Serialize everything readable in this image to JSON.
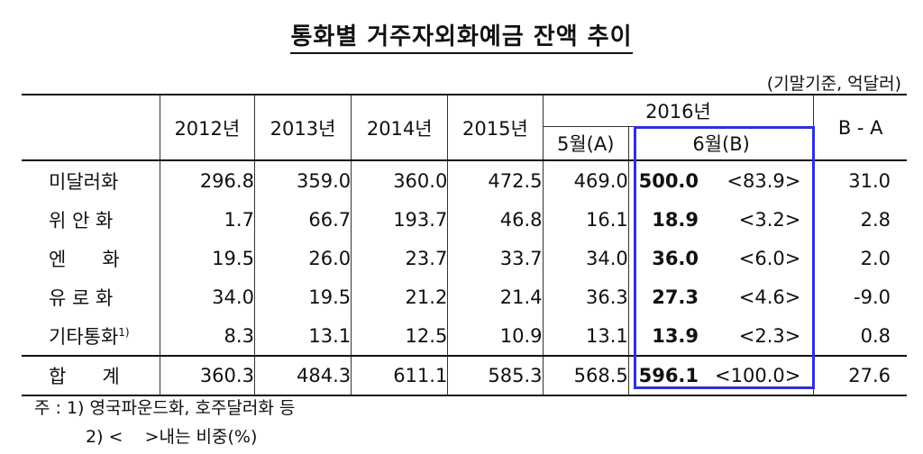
{
  "title": "통화별 거주자외화예금 잔액 추이",
  "unit": "(기말기준, 억달러)",
  "header": {
    "years": [
      "2012년",
      "2013년",
      "2014년",
      "2015년"
    ],
    "group": "2016년",
    "may": "5월(A)",
    "june": "6월(B)",
    "diff": "B - A"
  },
  "rows": [
    {
      "label": "미달러화",
      "sup": "",
      "y2012": "296.8",
      "y2013": "359.0",
      "y2014": "360.0",
      "y2015": "472.5",
      "may": "469.0",
      "june": "500.0",
      "ratio": "<83.9>",
      "diff": "31.0"
    },
    {
      "label": "위 안 화",
      "sup": "",
      "y2012": "1.7",
      "y2013": "66.7",
      "y2014": "193.7",
      "y2015": "46.8",
      "may": "16.1",
      "june": "18.9",
      "ratio": "<3.2>",
      "diff": "2.8"
    },
    {
      "label": "엔      화",
      "sup": "",
      "y2012": "19.5",
      "y2013": "26.0",
      "y2014": "23.7",
      "y2015": "33.7",
      "may": "34.0",
      "june": "36.0",
      "ratio": "<6.0>",
      "diff": "2.0"
    },
    {
      "label": "유 로 화",
      "sup": "",
      "y2012": "34.0",
      "y2013": "19.5",
      "y2014": "21.2",
      "y2015": "21.4",
      "may": "36.3",
      "june": "27.3",
      "ratio": "<4.6>",
      "diff": "-9.0"
    },
    {
      "label": "기타통화",
      "sup": "1)",
      "y2012": "8.3",
      "y2013": "13.1",
      "y2014": "12.5",
      "y2015": "10.9",
      "may": "13.1",
      "june": "13.9",
      "ratio": "<2.3>",
      "diff": "0.8"
    }
  ],
  "total": {
    "label": "합      계",
    "y2012": "360.3",
    "y2013": "484.3",
    "y2014": "611.1",
    "y2015": "585.3",
    "may": "568.5",
    "june": "596.1",
    "ratio": "<100.0>",
    "diff": "27.6"
  },
  "notes": {
    "line1": "주 : 1) 영국파운드화, 호주달러화 등",
    "line2": "2) <    >내는 비중(%)"
  },
  "colors": {
    "highlight": "#2f2fe0"
  }
}
